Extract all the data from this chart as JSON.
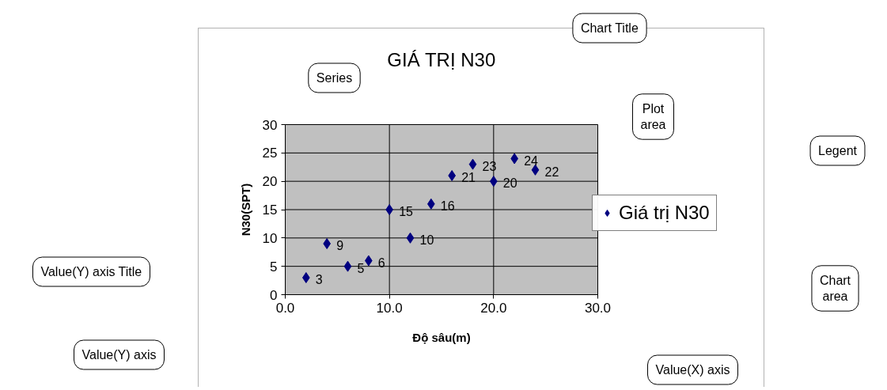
{
  "chart_data": {
    "type": "scatter",
    "title": "GIÁ TRỊ N30",
    "xlabel": "Độ sâu(m)",
    "ylabel": "N30(SPT)",
    "x": [
      2,
      4,
      6,
      8,
      10,
      12,
      14,
      16,
      18,
      20,
      22,
      24
    ],
    "series": [
      {
        "name": "Giá trị N30",
        "color": "#000080",
        "values": [
          3,
          9,
          5,
          6,
          15,
          10,
          16,
          21,
          23,
          20,
          24,
          22
        ]
      }
    ],
    "xlim": [
      0,
      30
    ],
    "xticks": [
      {
        "value": 0,
        "label": "0.0"
      },
      {
        "value": 10,
        "label": "10.0"
      },
      {
        "value": 20,
        "label": "20.0"
      },
      {
        "value": 30,
        "label": "30.0"
      }
    ],
    "ylim": [
      0,
      30
    ],
    "yticks": [
      0,
      5,
      10,
      15,
      20,
      25,
      30
    ],
    "grid": true,
    "legend": "right",
    "marker": "diamond",
    "data_labels": true,
    "annotations": [
      "Chart Title",
      "Series",
      "Plot area",
      "Legent",
      "Value(Y) axis Title",
      "Chart area",
      "Value(Y) axis",
      "Value(X) axis"
    ]
  }
}
